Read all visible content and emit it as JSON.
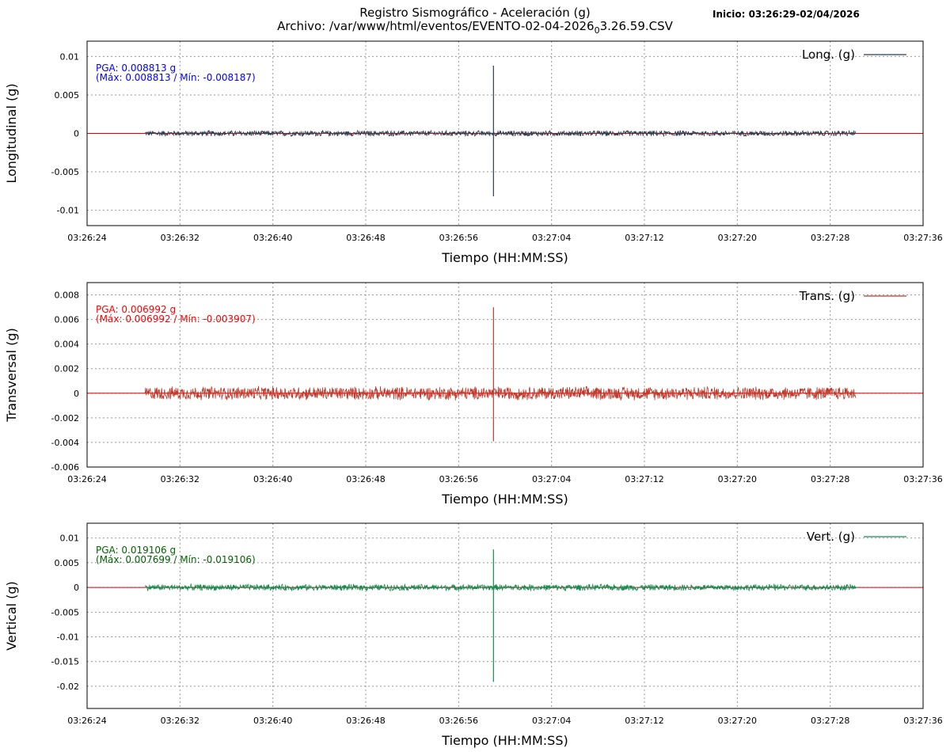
{
  "header": {
    "title": "Registro Sismográfico - Aceleración (g)",
    "file_prefix": "Archivo: /var/www/html/eventos/EVENTO-02-04-2026",
    "file_sub": "0",
    "file_suffix": "3.26.59.CSV",
    "start_label": "Inicio: 03:26:29-02/04/2026"
  },
  "chart_data": [
    {
      "type": "line",
      "ylabel": "Longitudinal (g)",
      "xlabel": "Tiempo (HH:MM:SS)",
      "x_ticks": [
        "03:26:24",
        "03:26:32",
        "03:26:40",
        "03:26:48",
        "03:26:56",
        "03:27:04",
        "03:27:12",
        "03:27:20",
        "03:27:28",
        "03:27:36"
      ],
      "y_ticks": [
        "0.01",
        "0.005",
        "0",
        "-0.005",
        "-0.01"
      ],
      "y_tick_values": [
        0.01,
        0.005,
        0,
        -0.005,
        -0.01
      ],
      "ylim": [
        -0.012,
        0.012
      ],
      "xlim_seconds": [
        0,
        72
      ],
      "data_range_seconds": [
        5,
        66.2
      ],
      "noise_amplitude": 0.0004,
      "spike": {
        "time_seconds": 35.0,
        "max": 0.008813,
        "min": -0.008187
      },
      "legend": "Long. (g)",
      "series_color": "#2c3e50",
      "pga_text": "PGA: 0.008813 g",
      "range_text": "(Máx: 0.008813 / Mín: -0.008187)",
      "annotation_color": "#0000ff",
      "grid": true
    },
    {
      "type": "line",
      "ylabel": "Transversal (g)",
      "xlabel": "Tiempo (HH:MM:SS)",
      "x_ticks": [
        "03:26:24",
        "03:26:32",
        "03:26:40",
        "03:26:48",
        "03:26:56",
        "03:27:04",
        "03:27:12",
        "03:27:20",
        "03:27:28",
        "03:27:36"
      ],
      "y_ticks": [
        "0.008",
        "0.006",
        "0.004",
        "0.002",
        "0",
        "-0.002",
        "-0.004",
        "-0.006"
      ],
      "y_tick_values": [
        0.008,
        0.006,
        0.004,
        0.002,
        0,
        -0.002,
        -0.004,
        -0.006
      ],
      "ylim": [
        -0.006,
        0.009
      ],
      "xlim_seconds": [
        0,
        72
      ],
      "data_range_seconds": [
        5,
        66.2
      ],
      "noise_amplitude": 0.0006,
      "spike": {
        "time_seconds": 35.0,
        "max": 0.006992,
        "min": -0.003907
      },
      "legend": "Trans. (g)",
      "series_color": "#c0392b",
      "pga_text": "PGA: 0.006992 g",
      "range_text": "(Máx: 0.006992 / Mín: -0.003907)",
      "annotation_color": "#ff0000",
      "grid": true
    },
    {
      "type": "line",
      "ylabel": "Vertical (g)",
      "xlabel": "Tiempo (HH:MM:SS)",
      "x_ticks": [
        "03:26:24",
        "03:26:32",
        "03:26:40",
        "03:26:48",
        "03:26:56",
        "03:27:04",
        "03:27:12",
        "03:27:20",
        "03:27:28",
        "03:27:36"
      ],
      "y_ticks": [
        "0.01",
        "0.005",
        "0",
        "-0.005",
        "-0.01",
        "-0.015",
        "-0.02"
      ],
      "y_tick_values": [
        0.01,
        0.005,
        0,
        -0.005,
        -0.01,
        -0.015,
        -0.02
      ],
      "ylim": [
        -0.0245,
        0.013
      ],
      "xlim_seconds": [
        0,
        72
      ],
      "data_range_seconds": [
        5,
        66.2
      ],
      "noise_amplitude": 0.0007,
      "spike": {
        "time_seconds": 35.0,
        "max": 0.007699,
        "min": -0.019106
      },
      "legend": "Vert. (g)",
      "series_color": "#138d4f",
      "pga_text": "PGA: 0.019106 g",
      "range_text": "(Máx: 0.007699 / Mín: -0.019106)",
      "annotation_color": "#006400",
      "grid": true
    }
  ]
}
